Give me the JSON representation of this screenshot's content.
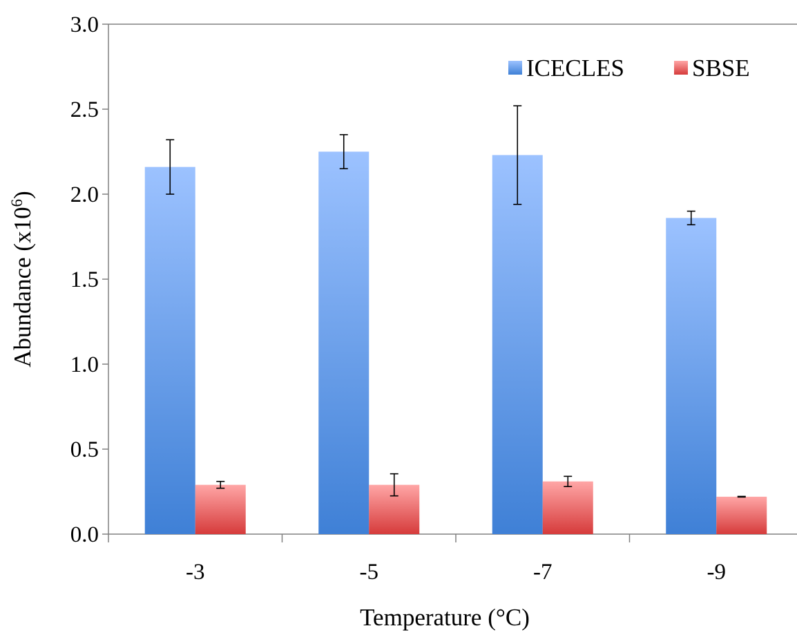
{
  "chart_data": {
    "type": "bar",
    "title": "",
    "xlabel": "Temperature (°C)",
    "ylabel_main": "Abundance (x10",
    "ylabel_sup": "6",
    "ylabel_close": ")",
    "categories": [
      "-3",
      "-5",
      "-7",
      "-9"
    ],
    "ylim": [
      0,
      3.0
    ],
    "yticks": [
      "0.0",
      "0.5",
      "1.0",
      "1.5",
      "2.0",
      "2.5",
      "3.0"
    ],
    "ytick_values": [
      0,
      0.5,
      1.0,
      1.5,
      2.0,
      2.5,
      3.0
    ],
    "grid": false,
    "legend_position": "top-right",
    "series": [
      {
        "name": "ICECLES",
        "values": [
          2.16,
          2.25,
          2.23,
          1.86
        ],
        "errors": [
          0.16,
          0.1,
          0.29,
          0.04
        ],
        "color_top": "#9cc2ff",
        "color_bottom": "#3f80d6"
      },
      {
        "name": "SBSE",
        "values": [
          0.29,
          0.29,
          0.31,
          0.22
        ],
        "errors": [
          0.02,
          0.065,
          0.03,
          0.002
        ],
        "color_top": "#ffa6a6",
        "color_bottom": "#d63b3b"
      }
    ]
  }
}
